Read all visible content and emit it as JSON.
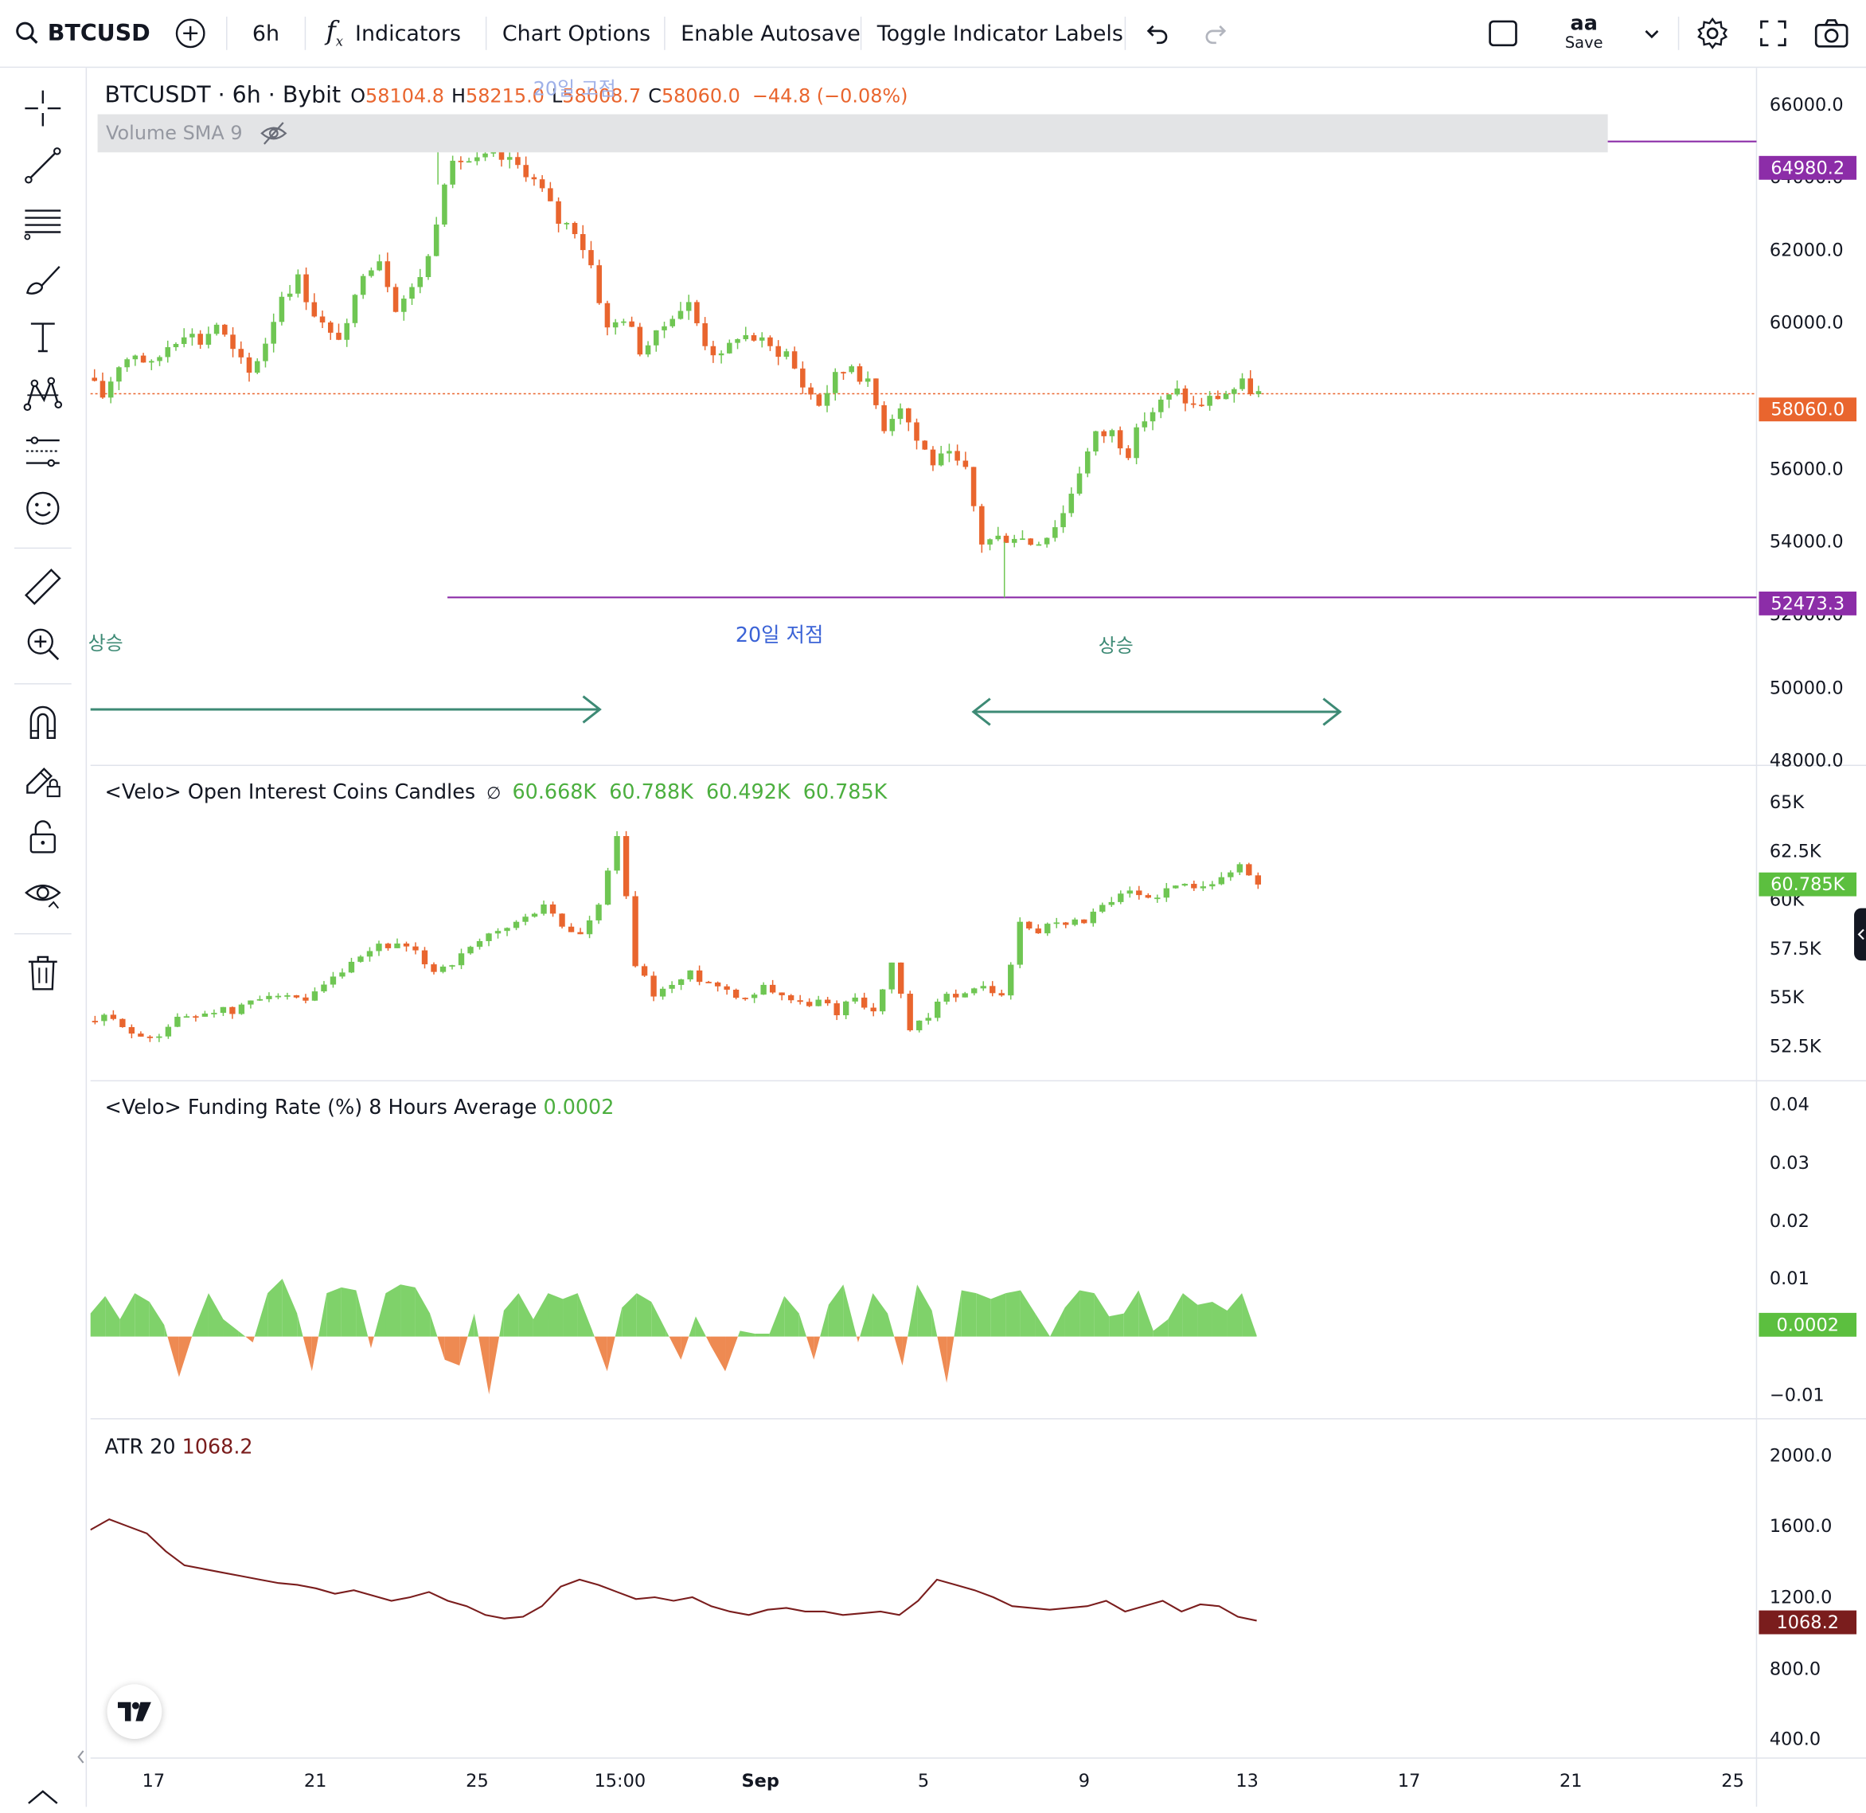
{
  "toolbar": {
    "symbol": "BTCUSDT",
    "interval": "6h",
    "indicators_label": "Indicators",
    "chart_options_label": "Chart Options",
    "autosave_label": "Enable Autosave",
    "toggle_labels_label": "Toggle Indicator Labels",
    "layout_name": "aa",
    "save_label": "Save"
  },
  "main_legend": {
    "title": "BTCUSDT · 6h · Bybit",
    "o_label": "O",
    "o": "58104.8",
    "h_label": "H",
    "h": "58215.0",
    "l_label": "L",
    "l": "58008.7",
    "c_label": "C",
    "c": "58060.0",
    "change": "−44.8 (−0.08%)",
    "volume": "Volume SMA 9"
  },
  "annotations": {
    "high_label": "20일 고점",
    "low_label": "20일 저점",
    "rise_left": "상승",
    "rise_right": "상승"
  },
  "price_badges": {
    "high": "64980.2",
    "current": "58060.0",
    "low": "52473.3"
  },
  "oi_legend": {
    "title": "<Velo> Open Interest Coins Candles",
    "values": "60.668K  60.788K  60.492K  60.785K",
    "badge": "60.785K"
  },
  "funding_legend": {
    "title": "<Velo> Funding Rate (%) 8 Hours Average",
    "value": "0.0002",
    "badge": "0.0002"
  },
  "atr_legend": {
    "title": "ATR 20",
    "value": "1068.2",
    "badge": "1068.2"
  },
  "colors": {
    "up": "#6fc653",
    "down": "#e9652e",
    "level": "#8c2da8",
    "arrow": "#3d8a75",
    "atr": "#7a1d1d",
    "text_blue": "#3b63d6"
  },
  "chart_data": [
    {
      "type": "candlestick",
      "name": "BTCUSDT · 6h · Bybit",
      "y_axis_ticks": [
        66000.0,
        64000.0,
        62000.0,
        60000.0,
        56000.0,
        54000.0,
        52000.0,
        50000.0,
        48000.0
      ],
      "ylim": [
        47900,
        67000
      ],
      "levels": [
        64980.2,
        52473.3
      ],
      "current": 58060.0,
      "close_path": [
        58500,
        58000,
        58900,
        59200,
        58800,
        59400,
        59800,
        59500,
        60000,
        59200,
        58600,
        59500,
        60800,
        61200,
        60300,
        59600,
        59800,
        61500,
        61800,
        60500,
        60900,
        61800,
        64000,
        64500,
        64400,
        64600,
        64400,
        64200,
        63600,
        62800,
        62600,
        61600,
        59800,
        60200,
        59300,
        59600,
        60300,
        60500,
        59500,
        59000,
        59700,
        59600,
        59300,
        59200,
        58300,
        57800,
        58500,
        58900,
        58300,
        57200,
        57800,
        56800,
        56200,
        56300,
        55900,
        54000,
        54100,
        54200,
        54000,
        54200,
        54800,
        56000,
        56900,
        57000,
        56500,
        57400,
        57800,
        58100,
        57700,
        57900,
        58100,
        58300,
        58060
      ],
      "x_ticks": [
        "17",
        "21",
        "25",
        "15:00",
        "Sep",
        "5",
        "9",
        "13",
        "17",
        "21",
        "25"
      ]
    },
    {
      "type": "candlestick",
      "name": "<Velo> Open Interest Coins Candles",
      "y_axis_ticks": [
        "65K",
        "62.5K",
        "60K",
        "57.5K",
        "55K",
        "52.5K"
      ],
      "ylim": [
        50800,
        66800
      ],
      "close_path": [
        53800,
        53900,
        53700,
        52800,
        53200,
        53900,
        54100,
        54400,
        54200,
        54800,
        55300,
        54900,
        54700,
        55500,
        56300,
        56900,
        57700,
        57600,
        57200,
        56400,
        56800,
        57400,
        58100,
        58600,
        59000,
        59800,
        58600,
        58200,
        59600,
        63200,
        56700,
        55200,
        55600,
        56200,
        55800,
        55400,
        55000,
        55600,
        55200,
        54600,
        54800,
        54300,
        55100,
        54200,
        56700,
        53300,
        53900,
        55300,
        55100,
        55600,
        55000,
        58700,
        58400,
        59000,
        58800,
        59200,
        59900,
        60300,
        60100,
        60500,
        60700,
        60900,
        61000,
        61800,
        60800
      ],
      "current": 60785
    },
    {
      "type": "area",
      "name": "<Velo> Funding Rate (%) 8 Hours Average",
      "y_axis_ticks": [
        "0.04",
        "0.03",
        "0.02",
        "0.01",
        "−0.01"
      ],
      "ylim": [
        -0.014,
        0.044
      ],
      "x": [
        0,
        1,
        2,
        3,
        4,
        5,
        6,
        7,
        8,
        9,
        10,
        11,
        12,
        13,
        14,
        15,
        16,
        17,
        18,
        19,
        20,
        21,
        22,
        23,
        24,
        25,
        26,
        27,
        28,
        29,
        30,
        31,
        32,
        33,
        34,
        35,
        36,
        37,
        38,
        39,
        40,
        41,
        42,
        43,
        44,
        45,
        46,
        47,
        48,
        49,
        50,
        51,
        52,
        53,
        54,
        55,
        56,
        57,
        58,
        59,
        60,
        61,
        62,
        63,
        64,
        65,
        66,
        67,
        68,
        69,
        70,
        71,
        72,
        73,
        74,
        75,
        76,
        77,
        78,
        79
      ],
      "values": [
        0.004,
        0.007,
        0.003,
        0.0075,
        0.006,
        0.002,
        -0.007,
        0.001,
        0.0075,
        0.003,
        0.001,
        -0.001,
        0.0075,
        0.01,
        0.004,
        -0.006,
        0.0075,
        0.0085,
        0.008,
        -0.002,
        0.0075,
        0.009,
        0.0085,
        0.004,
        -0.004,
        -0.005,
        0.004,
        -0.01,
        0.0045,
        0.0075,
        0.003,
        0.0075,
        0.0065,
        0.0075,
        0.001,
        -0.006,
        0.005,
        0.0075,
        0.006,
        0.001,
        -0.004,
        0.0035,
        -0.0015,
        -0.006,
        0.001,
        0.0005,
        0.0005,
        0.007,
        0.004,
        -0.004,
        0.0055,
        0.009,
        -0.001,
        0.0075,
        0.004,
        -0.005,
        0.009,
        0.0045,
        -0.008,
        0.008,
        0.0075,
        0.0065,
        0.0075,
        0.008,
        0.004,
        0.0,
        0.005,
        0.008,
        0.0075,
        0.0035,
        0.004,
        0.008,
        0.001,
        0.003,
        0.0075,
        0.0055,
        0.006,
        0.0045,
        0.0075,
        0.0002
      ],
      "current": 0.0002
    },
    {
      "type": "line",
      "name": "ATR 20",
      "y_axis_ticks": [
        2000.0,
        1600.0,
        1200.0,
        800.0,
        400.0
      ],
      "ylim": [
        300,
        2200
      ],
      "values": [
        1580,
        1640,
        1600,
        1560,
        1460,
        1380,
        1360,
        1340,
        1320,
        1300,
        1280,
        1270,
        1250,
        1220,
        1240,
        1210,
        1180,
        1200,
        1230,
        1180,
        1150,
        1100,
        1080,
        1090,
        1150,
        1260,
        1300,
        1270,
        1230,
        1190,
        1200,
        1180,
        1200,
        1150,
        1120,
        1100,
        1130,
        1140,
        1120,
        1120,
        1100,
        1110,
        1120,
        1100,
        1180,
        1300,
        1270,
        1240,
        1200,
        1150,
        1140,
        1130,
        1140,
        1150,
        1180,
        1120,
        1150,
        1180,
        1120,
        1160,
        1150,
        1090,
        1068.2
      ],
      "current": 1068.2
    }
  ]
}
